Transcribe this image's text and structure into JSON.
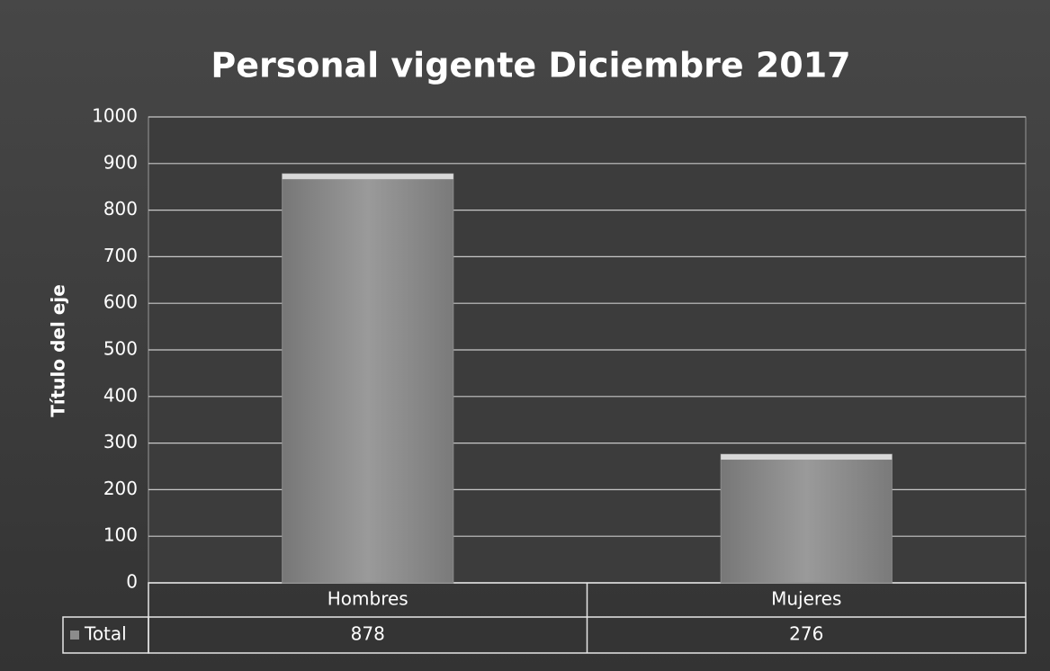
{
  "chart_data": {
    "type": "bar",
    "title": "Personal vigente Diciembre 2017",
    "y_label": "Título del eje",
    "categories": [
      "Hombres",
      "Mujeres"
    ],
    "series": [
      {
        "name": "Total",
        "color": "#8c8c8c",
        "values": [
          878,
          276
        ]
      }
    ],
    "ylim": [
      0,
      1000
    ],
    "yticks": [
      0,
      100,
      200,
      300,
      400,
      500,
      600,
      700,
      800,
      900,
      1000
    ],
    "grid": true
  }
}
